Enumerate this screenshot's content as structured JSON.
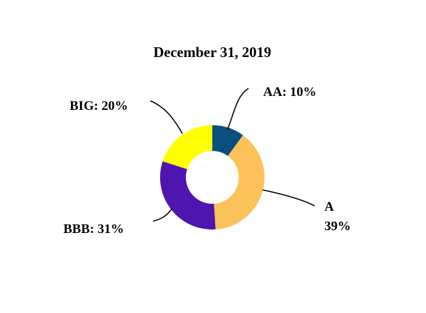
{
  "chart_data": {
    "type": "pie",
    "donut": true,
    "title": "December 31, 2019",
    "slices": [
      {
        "name": "AA",
        "value": 10,
        "color": "#0b4f7f",
        "label": "AA: 10%"
      },
      {
        "name": "A",
        "value": 39,
        "color": "#fcc25a",
        "label_lines": [
          "A",
          "39%"
        ]
      },
      {
        "name": "BBB",
        "value": 31,
        "color": "#4e15b0",
        "label": "BBB: 31%"
      },
      {
        "name": "BIG",
        "value": 20,
        "color": "#ffff00",
        "label": "BIG: 20%"
      }
    ]
  }
}
